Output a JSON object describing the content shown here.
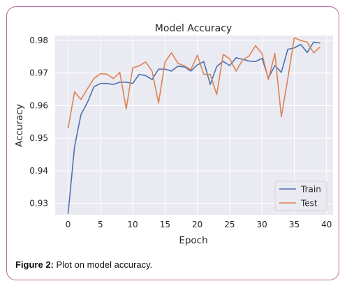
{
  "caption": {
    "label": "Figure 2:",
    "text": " Plot on model accuracy."
  },
  "colors": {
    "border": "#b06a9b",
    "plot_bg": "#eaeaf2",
    "grid": "#ffffff",
    "train": "#4c72b0",
    "test": "#dd8452"
  },
  "chart_data": {
    "type": "line",
    "title": "Model Accuracy",
    "xlabel": "Epoch",
    "ylabel": "Accuracy",
    "xlim": [
      -2,
      41
    ],
    "ylim": [
      0.9265,
      0.9815
    ],
    "xticks": [
      0,
      5,
      10,
      15,
      20,
      25,
      30,
      35,
      40
    ],
    "yticks": [
      0.93,
      0.94,
      0.95,
      0.96,
      0.97,
      0.98
    ],
    "ytick_labels": [
      "0.93",
      "0.94",
      "0.95",
      "0.96",
      "0.97",
      "0.98"
    ],
    "grid": true,
    "legend_position": "bottom-right",
    "x": [
      0,
      1,
      2,
      3,
      4,
      5,
      6,
      7,
      8,
      9,
      10,
      11,
      12,
      13,
      14,
      15,
      16,
      17,
      18,
      19,
      20,
      21,
      22,
      23,
      24,
      25,
      26,
      27,
      28,
      29,
      30,
      31,
      32,
      33,
      34,
      35,
      36,
      37,
      38,
      39
    ],
    "series": [
      {
        "name": "Train",
        "values": [
          0.9268,
          0.9474,
          0.9573,
          0.961,
          0.9658,
          0.9668,
          0.9668,
          0.9665,
          0.9672,
          0.9672,
          0.9668,
          0.9696,
          0.9692,
          0.968,
          0.9712,
          0.9712,
          0.9706,
          0.9721,
          0.9719,
          0.9706,
          0.9725,
          0.9735,
          0.9665,
          0.972,
          0.9736,
          0.9723,
          0.9747,
          0.9742,
          0.9737,
          0.9735,
          0.9745,
          0.9685,
          0.9723,
          0.9702,
          0.9773,
          0.9777,
          0.9788,
          0.9763,
          0.9795,
          0.9792
        ]
      },
      {
        "name": "Test",
        "values": [
          0.953,
          0.9642,
          0.9619,
          0.9652,
          0.9683,
          0.9698,
          0.9697,
          0.9683,
          0.9702,
          0.959,
          0.9716,
          0.9722,
          0.9734,
          0.9706,
          0.9608,
          0.9734,
          0.9762,
          0.973,
          0.9722,
          0.971,
          0.9755,
          0.9696,
          0.9696,
          0.9634,
          0.9757,
          0.9744,
          0.9706,
          0.974,
          0.9752,
          0.9784,
          0.976,
          0.968,
          0.976,
          0.9566,
          0.9683,
          0.9808,
          0.98,
          0.9795,
          0.9762,
          0.978
        ]
      }
    ]
  }
}
